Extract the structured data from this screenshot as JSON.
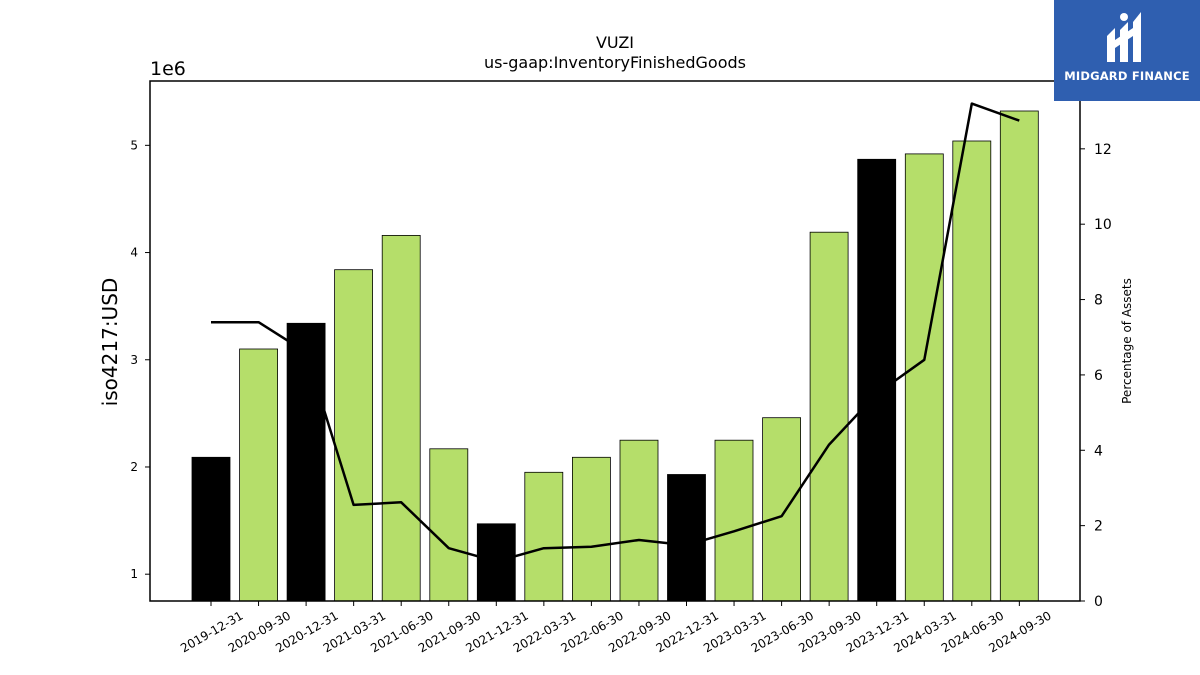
{
  "chart_data": {
    "type": "bar",
    "title": "VUZI",
    "subtitle": "us-gaap:InventoryFinishedGoods",
    "ylabel": "iso4217:USD",
    "y_offset_label": "1e6",
    "y2label": "Percentage of Assets",
    "ylim": [
      750000,
      5600000
    ],
    "y_ticks": [
      1,
      2,
      3,
      4,
      5
    ],
    "y2lim": [
      0,
      13.8
    ],
    "y2_ticks": [
      0,
      2,
      4,
      6,
      8,
      10,
      12
    ],
    "categories": [
      "2019-12-31",
      "2020-09-30",
      "2020-12-31",
      "2021-03-31",
      "2021-06-30",
      "2021-09-30",
      "2021-12-31",
      "2022-03-31",
      "2022-06-30",
      "2022-09-30",
      "2022-12-31",
      "2023-03-31",
      "2023-06-30",
      "2023-09-30",
      "2023-12-31",
      "2024-03-31",
      "2024-06-30",
      "2024-09-30"
    ],
    "series": [
      {
        "values": [
          2090000,
          3100000,
          3340000,
          3840000,
          4160000,
          2170000,
          1470000,
          1950000,
          2090000,
          2250000,
          1930000,
          2250000,
          2460000,
          4190000,
          4870000,
          4920000,
          5040000,
          5320000
        ],
        "annual": [
          true,
          false,
          true,
          false,
          false,
          false,
          true,
          false,
          false,
          false,
          true,
          false,
          false,
          false,
          true,
          false,
          false,
          false
        ],
        "axis": "left"
      },
      {
        "type": "line",
        "values": [
          7.4,
          7.4,
          6.6,
          2.55,
          2.62,
          1.4,
          1.05,
          1.4,
          1.44,
          1.62,
          1.48,
          1.85,
          2.25,
          4.15,
          5.5,
          6.4,
          13.2,
          12.75
        ],
        "axis": "right"
      }
    ],
    "colors": {
      "annual_bar": "#000000",
      "quarter_bar": "#b5de6a",
      "line": "#000000"
    }
  },
  "logo": {
    "text": "MIDGARD FINANCE",
    "color": "#2f5fb0"
  }
}
